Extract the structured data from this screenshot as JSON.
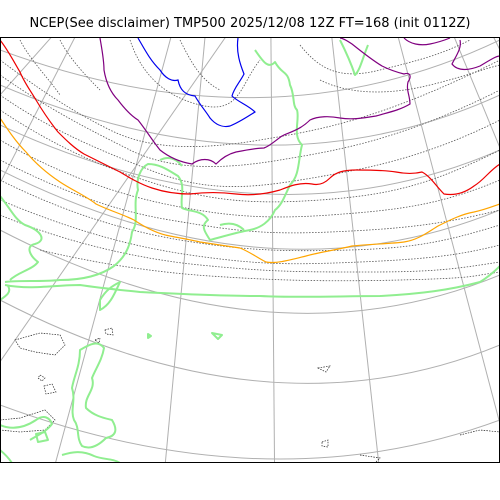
{
  "map": {
    "title": "NCEP(See disclaimer) TMP500 2025/12/08 12Z FT=168 (init 0112Z)",
    "projection": "polar-stereographic",
    "grid_lines": "on",
    "legend": "none",
    "colors": {
      "background": "#ffffff",
      "frame": "#000000",
      "graticule": "#b0b0b0",
      "coastline": "#222222",
      "isotherm": "#555555",
      "land_mask": "#90ee90",
      "contour_blue": "#0000ee",
      "contour_purple": "#800080",
      "contour_red": "#ee0000",
      "contour_orange": "#ffa500"
    },
    "highlighted_isotherms": [
      {
        "name": "blue",
        "color": "#0000ee"
      },
      {
        "name": "purple",
        "color": "#800080"
      },
      {
        "name": "red",
        "color": "#ee0000"
      },
      {
        "name": "orange",
        "color": "#ffa500"
      }
    ]
  }
}
